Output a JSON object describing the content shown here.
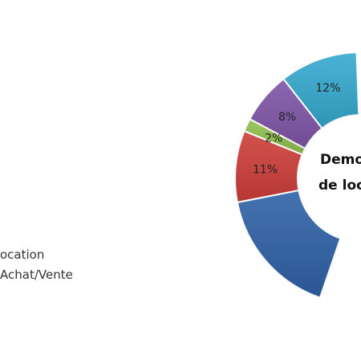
{
  "chart_data": {
    "type": "pie",
    "variant": "donut",
    "center_title_lines": [
      "Demo",
      "de loc"
    ],
    "slices": [
      {
        "label": "12%",
        "value": 12,
        "color": "#35A9CF"
      },
      {
        "label": "8%",
        "value": 8,
        "color": "#7F56A8"
      },
      {
        "label": "2%",
        "value": 2,
        "color": "#8FC04E"
      },
      {
        "label": "11%",
        "value": 11,
        "color": "#CD3E3A"
      },
      {
        "label": "",
        "value": 20,
        "color": "#2F62A6"
      }
    ],
    "legend": [
      {
        "label": "ocation"
      },
      {
        "label": "Achat/Vente"
      }
    ]
  }
}
